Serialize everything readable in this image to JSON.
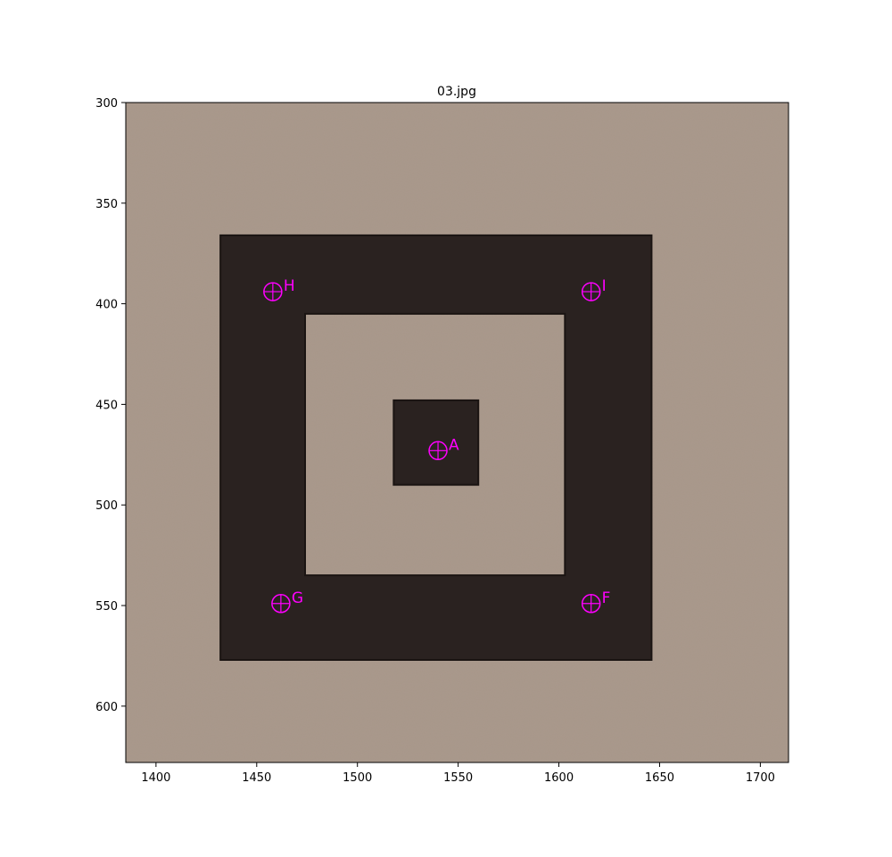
{
  "chart_data": {
    "type": "scatter",
    "title": "03.jpg",
    "xlabel": "",
    "ylabel": "",
    "xlim": [
      1385,
      1714
    ],
    "ylim": [
      628,
      300
    ],
    "y_inverted": true,
    "grid": false,
    "x_ticks": [
      1400,
      1450,
      1500,
      1550,
      1600,
      1650,
      1700
    ],
    "y_ticks": [
      300,
      350,
      400,
      450,
      500,
      550,
      600
    ],
    "background_image": {
      "description": "photo of a square fiducial target",
      "paper_color": "#a8978a",
      "ink_color": "#2a2220",
      "outer_square": {
        "x0": 1432,
        "y0": 366,
        "x1": 1646,
        "y1": 577
      },
      "inner_light_square": {
        "x0": 1474,
        "y0": 405,
        "x1": 1603,
        "y1": 535
      },
      "center_square": {
        "x0": 1518,
        "y0": 448,
        "x1": 1560,
        "y1": 490
      }
    },
    "marker_color": "#ff00ff",
    "points": [
      {
        "label": "H",
        "x": 1458,
        "y": 394
      },
      {
        "label": "I",
        "x": 1616,
        "y": 394
      },
      {
        "label": "A",
        "x": 1540,
        "y": 473
      },
      {
        "label": "G",
        "x": 1462,
        "y": 549
      },
      {
        "label": "F",
        "x": 1616,
        "y": 549
      }
    ]
  }
}
